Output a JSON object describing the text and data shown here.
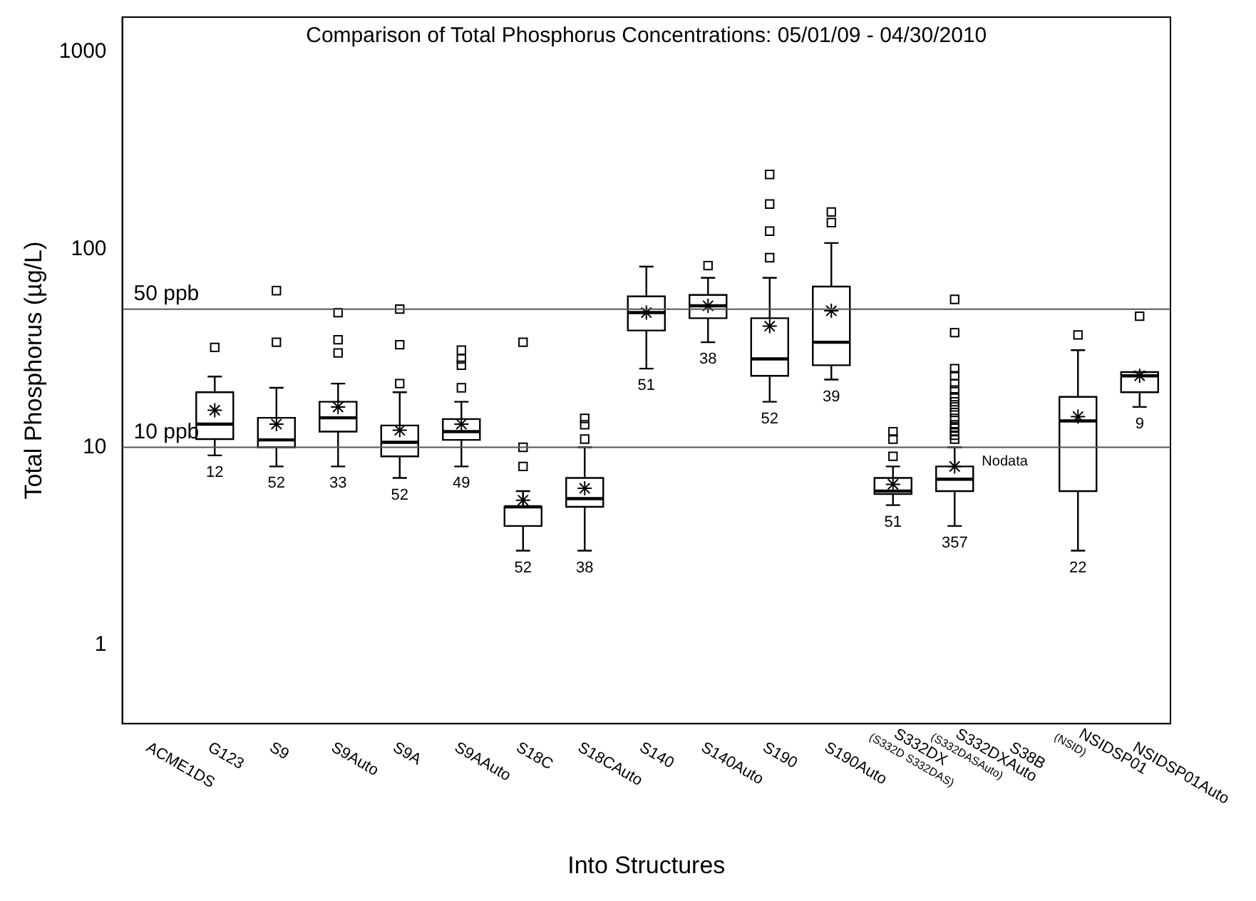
{
  "chart_data": {
    "type": "box",
    "title": "Comparison of Total Phosphorus Concentrations: 05/01/09 - 04/30/2010",
    "xlabel": "Into Structures",
    "ylabel": "Total Phosphorus (µg/L)",
    "categories": [
      "ACME1DS",
      "G123",
      "S9",
      "S9Auto",
      "S9A",
      "S9AAuto",
      "S18C",
      "S18CAuto",
      "S140",
      "S140Auto",
      "S190",
      "S190Auto",
      "S332DX\n(S332D S332DAS)",
      "S332DXAuto\n(S332DASAuto)",
      "S38B",
      "NSIDSP01\n(NSID)",
      "NSIDSP01Auto"
    ],
    "boxes": [
      null,
      {
        "low": 9.1,
        "q1": 11,
        "median": 13.1,
        "q3": 19,
        "high": 22.8,
        "mean": 15.4,
        "outliers": [
          32
        ]
      },
      {
        "low": 8,
        "q1": 10,
        "median": 10.9,
        "q3": 14.1,
        "high": 20,
        "mean": 13.1,
        "outliers": [
          62,
          34
        ]
      },
      {
        "low": 8,
        "q1": 12,
        "median": 14.1,
        "q3": 17,
        "high": 21,
        "mean": 16,
        "outliers": [
          48,
          35,
          30
        ]
      },
      {
        "low": 7,
        "q1": 9,
        "median": 10.6,
        "q3": 12.9,
        "high": 19,
        "mean": 12.2,
        "outliers": [
          50,
          33,
          21
        ]
      },
      {
        "low": 8,
        "q1": 10.9,
        "median": 12,
        "q3": 13.9,
        "high": 17,
        "mean": 13.1,
        "outliers": [
          31,
          28,
          26,
          20
        ]
      },
      {
        "low": 3,
        "q1": 4,
        "median": 5,
        "q3": 5,
        "high": 6,
        "mean": 5.4,
        "outliers": [
          34,
          10,
          8
        ]
      },
      {
        "low": 3,
        "q1": 5,
        "median": 5.5,
        "q3": 7,
        "high": 10,
        "mean": 6.2,
        "outliers": [
          14,
          13,
          11
        ]
      },
      {
        "low": 25,
        "q1": 39,
        "median": 48,
        "q3": 58,
        "high": 82,
        "mean": 48
      },
      {
        "low": 34,
        "q1": 45,
        "median": 52,
        "q3": 59,
        "high": 72,
        "mean": 52,
        "outliers": [
          83
        ]
      },
      {
        "low": 17,
        "q1": 23,
        "median": 28,
        "q3": 45,
        "high": 72,
        "mean": 41,
        "outliers": [
          240,
          170,
          124,
          91
        ]
      },
      {
        "low": 22,
        "q1": 26,
        "median": 34,
        "q3": 65,
        "high": 108,
        "mean": 49,
        "outliers": [
          155,
          137
        ]
      },
      {
        "low": 5.1,
        "q1": 5.8,
        "median": 6,
        "q3": 7,
        "high": 8,
        "mean": 6.5,
        "outliers": [
          12,
          11,
          9
        ]
      },
      {
        "low": 4,
        "q1": 6,
        "median": 6.9,
        "q3": 8,
        "high": 10,
        "mean": 8,
        "outliers": [
          56,
          38,
          25,
          23,
          21,
          19.5,
          18,
          17,
          16,
          15,
          14,
          13,
          12.5,
          12,
          11.5,
          11
        ]
      },
      null,
      {
        "low": 3,
        "q1": 6,
        "median": 13.6,
        "q3": 18,
        "high": 31,
        "mean": 14.3,
        "outliers": [
          37
        ]
      },
      {
        "low": 16,
        "q1": 19,
        "median": 23,
        "q3": 24,
        "high": 24,
        "mean": 23,
        "outliers": [
          46
        ]
      }
    ],
    "log": "y",
    "ylim": [
      0.4,
      1500
    ],
    "yticks": [
      1,
      10,
      100,
      1000
    ],
    "ref_lines": [
      {
        "axis": "y",
        "value": 50,
        "label": "50 ppb"
      },
      {
        "axis": "y",
        "value": 10,
        "label": "10 ppb"
      }
    ],
    "annotations": [
      {
        "text": "12",
        "x": "G123",
        "y": 9.1
      },
      {
        "text": "52",
        "x": "S9",
        "y": 8
      },
      {
        "text": "33",
        "x": "S9Auto",
        "y": 8
      },
      {
        "text": "52",
        "x": "S9A",
        "y": 7
      },
      {
        "text": "49",
        "x": "S9AAuto",
        "y": 8
      },
      {
        "text": "52",
        "x": "S18C",
        "y": 3
      },
      {
        "text": "38",
        "x": "S18CAuto",
        "y": 3
      },
      {
        "text": "51",
        "x": "S140",
        "y": 25
      },
      {
        "text": "38",
        "x": "S140Auto",
        "y": 34
      },
      {
        "text": "52",
        "x": "S190",
        "y": 17
      },
      {
        "text": "39",
        "x": "S190Auto",
        "y": 22
      },
      {
        "text": "51",
        "x": "S332DX\n(S332D S332DAS)",
        "y": 5.1
      },
      {
        "text": "357",
        "x": "S332DXAuto\n(S332DASAuto)",
        "y": 4
      },
      "Nodata",
      {
        "text": "22",
        "x": "NSIDSP01\n(NSID)",
        "y": 3
      },
      {
        "text": "9",
        "x": "NSIDSP01Auto",
        "y": 16
      }
    ]
  }
}
